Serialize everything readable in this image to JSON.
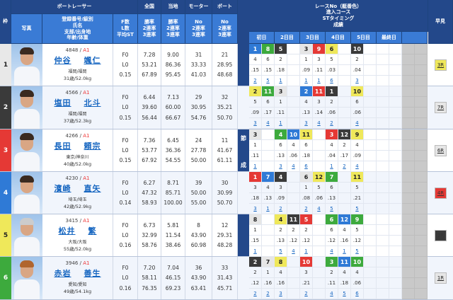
{
  "header": {
    "boat_racer": "ボートレーサー",
    "zenkoku": "全国",
    "touchi": "当地",
    "motor": "モーター",
    "boat": "ボート",
    "waku": "枠",
    "photo": "写真",
    "info": "登録番号/級別\n氏名\n支部/出身地\n年齢/体重",
    "fl": "F数\nL数\n平均ST",
    "zenkoku_sub": "勝率\n2連率\n3連率",
    "touchi_sub": "勝率\n2連率\n3連率",
    "motor_sub": "No\n2連率\n3連率",
    "boat_sub": "No\n2連率\n3連率",
    "race_title": "レースNo（艇番色）\n進入コース\nSTタイミング\n成績",
    "hayami": "早見",
    "days": [
      "初日",
      "2日目",
      "3日目",
      "4日目",
      "5日目",
      "最終日",
      ""
    ],
    "side_label": [
      "今",
      "節",
      "成",
      "績"
    ]
  },
  "colors": {
    "frame": [
      "#e8e8e8",
      "#3a3a3a",
      "#e53935",
      "#2f7ad6",
      "#efe85a",
      "#3daa3d"
    ],
    "accent": "#2b5ba8"
  },
  "racers": [
    {
      "frame": "1",
      "reg": "4848",
      "cls": "A1",
      "sei": "仲谷",
      "mei": "颯仁",
      "branch": "福岡/福岡",
      "age_weight": "31歳/52.0kg",
      "f": "F0",
      "l": "L0",
      "st": "0.15",
      "nat": [
        "7.28",
        "53.21",
        "67.89"
      ],
      "loc": [
        "9.00",
        "86.36",
        "95.45"
      ],
      "motor": [
        "31",
        "33.33",
        "41.03"
      ],
      "boat": [
        "21",
        "28.95",
        "48.68"
      ],
      "races": [
        "1b",
        "8g",
        "5k",
        "",
        "3w",
        "9r",
        "6y",
        "",
        "10k",
        "",
        "",
        ""
      ],
      "course": [
        "4",
        "6",
        "2",
        "",
        "1",
        "3",
        "5",
        "",
        "2",
        "",
        "",
        ""
      ],
      "st_t": [
        ".15",
        ".15",
        ".18",
        "",
        ".09",
        ".11",
        ".03",
        "",
        ".04",
        "",
        "",
        ""
      ],
      "result": [
        "2",
        "5",
        "1",
        "",
        "1",
        "1",
        "6",
        "",
        "3",
        "",
        "",
        ""
      ],
      "hayami": "3R",
      "hayami_color": "y"
    },
    {
      "frame": "2",
      "reg": "4566",
      "cls": "A1",
      "sei": "塩田",
      "mei": "北斗",
      "branch": "福岡/福岡",
      "age_weight": "37歳/52.3kg",
      "f": "F0",
      "l": "L0",
      "st": "0.15",
      "nat": [
        "6.44",
        "39.60",
        "56.44"
      ],
      "loc": [
        "7.13",
        "60.00",
        "66.67"
      ],
      "motor": [
        "29",
        "30.95",
        "54.76"
      ],
      "boat": [
        "32",
        "35.21",
        "50.70"
      ],
      "races": [
        "2y",
        "11g",
        "3w",
        "",
        "2b",
        "11r",
        "1k",
        "",
        "10y",
        "",
        "",
        ""
      ],
      "course": [
        "5",
        "6",
        "1",
        "",
        "4",
        "3",
        "2",
        "",
        "6",
        "",
        "",
        ""
      ],
      "st_t": [
        ".09",
        ".17",
        ".11",
        "",
        ".13",
        ".14",
        ".06",
        "",
        ".06",
        "",
        "",
        ""
      ],
      "result": [
        "3",
        "4",
        "1",
        "",
        "3",
        "4",
        "2",
        "",
        "4",
        "",
        "",
        ""
      ],
      "hayami": "7R",
      "hayami_color": "w"
    },
    {
      "frame": "3",
      "reg": "4266",
      "cls": "A1",
      "sei": "長田",
      "mei": "頼宗",
      "branch": "東京/神奈川",
      "age_weight": "40歳/52.0kg",
      "f": "F0",
      "l": "L0",
      "st": "0.15",
      "nat": [
        "7.36",
        "53.77",
        "67.92"
      ],
      "loc": [
        "6.45",
        "36.36",
        "54.55"
      ],
      "motor": [
        "24",
        "27.78",
        "50.00"
      ],
      "boat": [
        "11",
        "41.67",
        "61.11"
      ],
      "races": [
        "3w",
        "",
        "4g",
        "10b",
        "11y",
        "",
        "3r",
        "12k",
        "9y",
        "",
        "",
        ""
      ],
      "course": [
        "1",
        "",
        "6",
        "4",
        "6",
        "",
        "4",
        "2",
        "4",
        "",
        "",
        ""
      ],
      "st_t": [
        ".11",
        "",
        ".13",
        ".06",
        ".18",
        "",
        ".04",
        ".17",
        ".09",
        "",
        "",
        ""
      ],
      "result": [
        "1",
        "",
        "3",
        "4",
        "6",
        "",
        "1",
        "2",
        "4",
        "",
        "",
        ""
      ],
      "hayami": "6R",
      "hayami_color": "w"
    },
    {
      "frame": "4",
      "reg": "4230",
      "cls": "A1",
      "sei": "濱崎",
      "mei": "直矢",
      "branch": "埼玉/埼玉",
      "age_weight": "42歳/52.9kg",
      "f": "F0",
      "l": "L0",
      "st": "0.14",
      "nat": [
        "6.27",
        "47.32",
        "58.93"
      ],
      "loc": [
        "8.71",
        "85.71",
        "100.00"
      ],
      "motor": [
        "39",
        "50.00",
        "55.00"
      ],
      "boat": [
        "30",
        "30.99",
        "50.70"
      ],
      "races": [
        "1r",
        "7b",
        "4k",
        "",
        "6w",
        "12y",
        "7g",
        "",
        "11y",
        "",
        "",
        ""
      ],
      "course": [
        "3",
        "4",
        "3",
        "",
        "1",
        "5",
        "6",
        "",
        "5",
        "",
        "",
        ""
      ],
      "st_t": [
        ".18",
        ".13",
        ".09",
        "",
        ".08",
        ".06",
        ".13",
        "",
        ".21",
        "",
        "",
        ""
      ],
      "result": [
        "3",
        "1",
        "2",
        "",
        "2",
        "4",
        "5",
        "",
        "5",
        "",
        "",
        ""
      ],
      "hayami": "4R",
      "hayami_color": "r"
    },
    {
      "frame": "5",
      "reg": "3415",
      "cls": "A1",
      "sei": "松井",
      "mei": "繁",
      "branch": "大阪/大阪",
      "age_weight": "55歳/52.0kg",
      "f": "F0",
      "l": "L0",
      "st": "0.16",
      "nat": [
        "6.73",
        "32.99",
        "58.76"
      ],
      "loc": [
        "5.81",
        "11.54",
        "38.46"
      ],
      "motor": [
        "8",
        "43.90",
        "60.98"
      ],
      "boat": [
        "12",
        "29.31",
        "48.28"
      ],
      "races": [
        "8w",
        "",
        "4y",
        "11k",
        "5r",
        "",
        "6g",
        "12b",
        "9g",
        "",
        "",
        ""
      ],
      "course": [
        "1",
        "",
        "2",
        "2",
        "2",
        "",
        "6",
        "4",
        "5",
        "",
        "",
        ""
      ],
      "st_t": [
        ".15",
        "",
        ".13",
        ".12",
        ".12",
        "",
        ".12",
        ".16",
        ".12",
        "",
        "",
        ""
      ],
      "result": [
        "1",
        "",
        "5",
        "4",
        "1",
        "",
        "4",
        "1",
        "5",
        "",
        "",
        ""
      ],
      "hayami": "2R",
      "hayami_color": "k"
    },
    {
      "frame": "6",
      "reg": "3946",
      "cls": "A1",
      "sei": "赤岩",
      "mei": "善生",
      "branch": "愛知/愛知",
      "age_weight": "49歳/54.1kg",
      "f": "F0",
      "l": "L0",
      "st": "0.16",
      "nat": [
        "7.20",
        "58.11",
        "76.35"
      ],
      "loc": [
        "7.04",
        "46.15",
        "69.23"
      ],
      "motor": [
        "36",
        "43.90",
        "63.41"
      ],
      "boat": [
        "33",
        "31.43",
        "45.71"
      ],
      "races": [
        "2k",
        "7w",
        "8y",
        "",
        "10r",
        "",
        "3g",
        "11b",
        "10g",
        "",
        "",
        ""
      ],
      "course": [
        "2",
        "1",
        "4",
        "",
        "3",
        "",
        "2",
        "4",
        "4",
        "",
        "",
        ""
      ],
      "st_t": [
        ".12",
        ".16",
        ".16",
        "",
        ".21",
        "",
        ".11",
        ".18",
        ".06",
        "",
        "",
        ""
      ],
      "result": [
        "2",
        "2",
        "3",
        "",
        "2",
        "",
        "4",
        "5",
        "6",
        "",
        "",
        ""
      ],
      "hayami": "1R",
      "hayami_color": "w"
    }
  ]
}
